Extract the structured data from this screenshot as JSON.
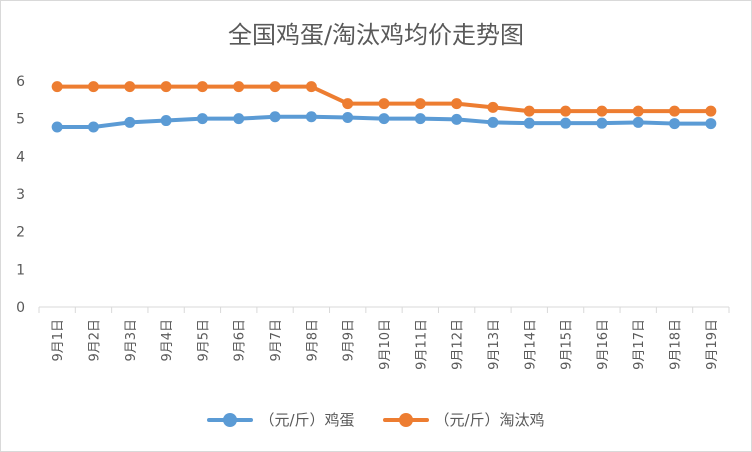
{
  "chart_data": {
    "type": "line",
    "title": "全国鸡蛋/淘汰鸡均价走势图",
    "categories": [
      "9月1日",
      "9月2日",
      "9月3日",
      "9月4日",
      "9月5日",
      "9月6日",
      "9月7日",
      "9月8日",
      "9月9日",
      "9月10日",
      "9月11日",
      "9月12日",
      "9月13日",
      "9月14日",
      "9月15日",
      "9月16日",
      "9月17日",
      "9月18日",
      "9月19日"
    ],
    "ylim": [
      0,
      6
    ],
    "yticks": [
      0,
      1,
      2,
      3,
      4,
      5,
      6
    ],
    "grid": false,
    "legend_position": "bottom",
    "series": [
      {
        "name": "（元/斤）鸡蛋",
        "color": "#5B9BD5",
        "values": [
          4.78,
          4.78,
          4.9,
          4.95,
          5.0,
          5.0,
          5.05,
          5.05,
          5.03,
          5.0,
          5.0,
          4.98,
          4.9,
          4.88,
          4.88,
          4.88,
          4.9,
          4.87,
          4.87
        ]
      },
      {
        "name": "（元/斤）淘汰鸡",
        "color": "#ED7D31",
        "values": [
          5.85,
          5.85,
          5.85,
          5.85,
          5.85,
          5.85,
          5.85,
          5.85,
          5.4,
          5.4,
          5.4,
          5.4,
          5.3,
          5.2,
          5.2,
          5.2,
          5.2,
          5.2,
          5.2
        ]
      }
    ]
  }
}
